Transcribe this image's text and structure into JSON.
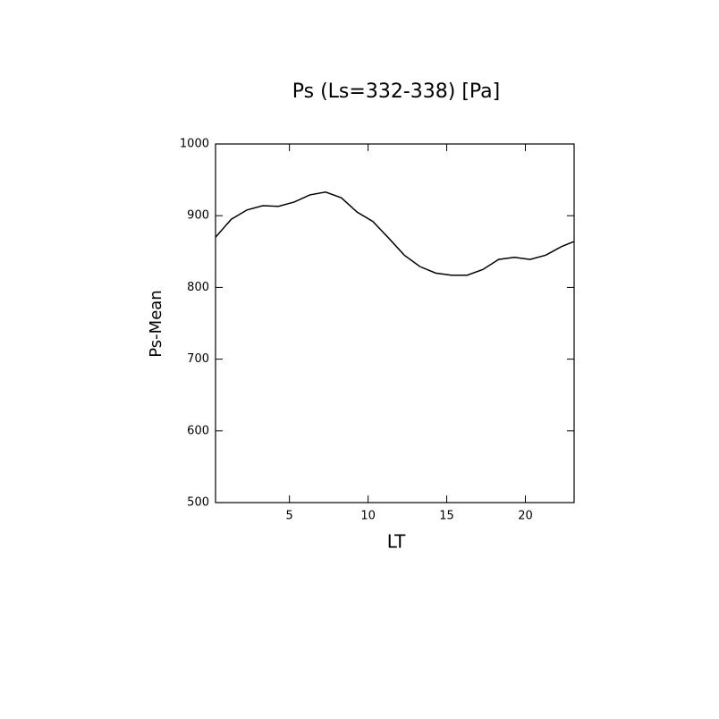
{
  "chart_data": {
    "type": "line",
    "title": "Ps (Ls=332-338) [Pa]",
    "x_label": "LT",
    "y_label": "Ps-Mean",
    "x": [
      0.3,
      1.3,
      2.3,
      3.3,
      4.3,
      5.3,
      6.3,
      7.3,
      8.3,
      9.3,
      10.3,
      11.3,
      12.3,
      13.3,
      14.3,
      15.3,
      16.3,
      17.3,
      18.3,
      19.3,
      20.3,
      21.3,
      22.3,
      23.1
    ],
    "series": [
      {
        "color": "#000000",
        "values": [
          870,
          895,
          908,
          914,
          913,
          919,
          929,
          933,
          925,
          905,
          892,
          869,
          845,
          829,
          820,
          817,
          817,
          825,
          839,
          842,
          839,
          845,
          857,
          864
        ]
      }
    ],
    "xlim": [
      0.3,
      23.1
    ],
    "xticks": [
      5,
      10,
      15,
      20
    ],
    "ylim": [
      500,
      1000
    ],
    "yticks": [
      500,
      600,
      700,
      800,
      900,
      1000
    ]
  }
}
